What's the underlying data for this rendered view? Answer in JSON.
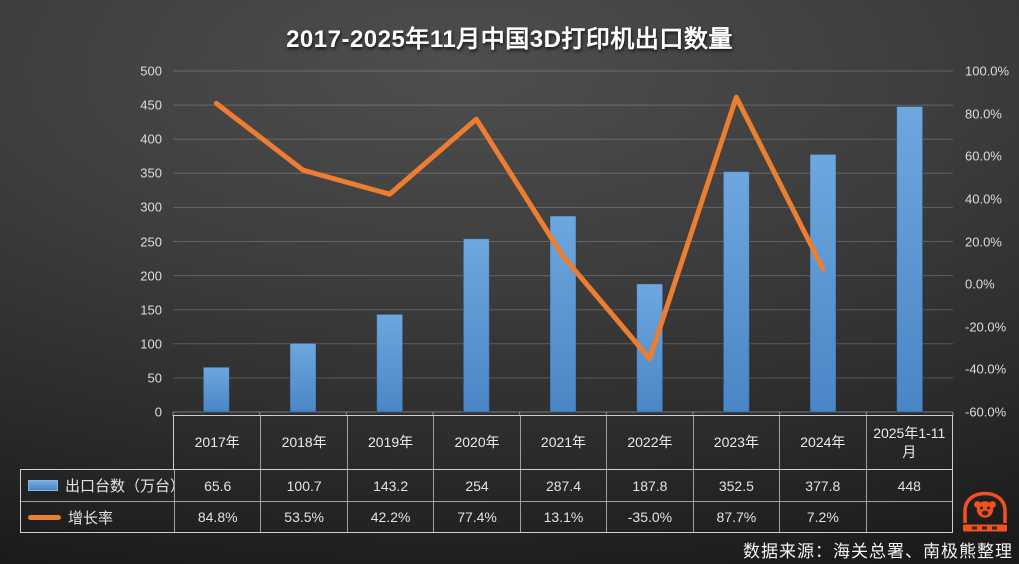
{
  "title": "2017-2025年11月中国3D打印机出口数量",
  "source_note": "数据来源：海关总署、南极熊整理",
  "logo": {
    "icon": "nanjixiong-bear",
    "color": "#f2501e"
  },
  "chart_data": {
    "type": "bar+line combo",
    "title": "2017-2025年11月中国3D打印机出口数量",
    "categories": [
      "2017年",
      "2018年",
      "2019年",
      "2020年",
      "2021年",
      "2022年",
      "2023年",
      "2024年",
      "2025年1-11月"
    ],
    "series": [
      {
        "name": "出口台数（万台）",
        "type": "bar",
        "axis": "left",
        "color": "#5b9bd5",
        "values": [
          65.6,
          100.7,
          143.2,
          254,
          287.4,
          187.8,
          352.5,
          377.8,
          448
        ]
      },
      {
        "name": "增长率",
        "type": "line",
        "axis": "right",
        "color": "#ed7d31",
        "values": [
          84.8,
          53.5,
          42.2,
          77.4,
          13.1,
          -35.0,
          87.7,
          7.2,
          null
        ]
      }
    ],
    "left_axis": {
      "min": 0,
      "max": 500,
      "step": 50,
      "ticks_top_to_bottom": [
        "500",
        "450",
        "400",
        "350",
        "300",
        "250",
        "200",
        "150",
        "100",
        "50",
        "0"
      ]
    },
    "right_axis": {
      "min": -60,
      "max": 100,
      "step": 20,
      "ticks_top_to_bottom": [
        "100.0%",
        "80.0%",
        "60.0%",
        "40.0%",
        "20.0%",
        "0.0%",
        "-20.0%",
        "-40.0%",
        "-60.0%"
      ]
    },
    "grid": true,
    "legend_position": "table-row-labels"
  },
  "table": {
    "row_labels": [
      "出口台数（万台）",
      "增长率"
    ],
    "column_headers": [
      "2017年",
      "2018年",
      "2019年",
      "2020年",
      "2021年",
      "2022年",
      "2023年",
      "2024年",
      "2025年1-11月"
    ],
    "rows": [
      [
        "65.6",
        "100.7",
        "143.2",
        "254",
        "287.4",
        "187.8",
        "352.5",
        "377.8",
        "448"
      ],
      [
        "84.8%",
        "53.5%",
        "42.2%",
        "77.4%",
        "13.1%",
        "-35.0%",
        "87.7%",
        "7.2%",
        ""
      ]
    ]
  },
  "colors": {
    "bar": "#5b9bd5",
    "line": "#ed7d31",
    "grid": "rgba(255,255,255,0.2)",
    "table_border": "#cfcfcf"
  }
}
